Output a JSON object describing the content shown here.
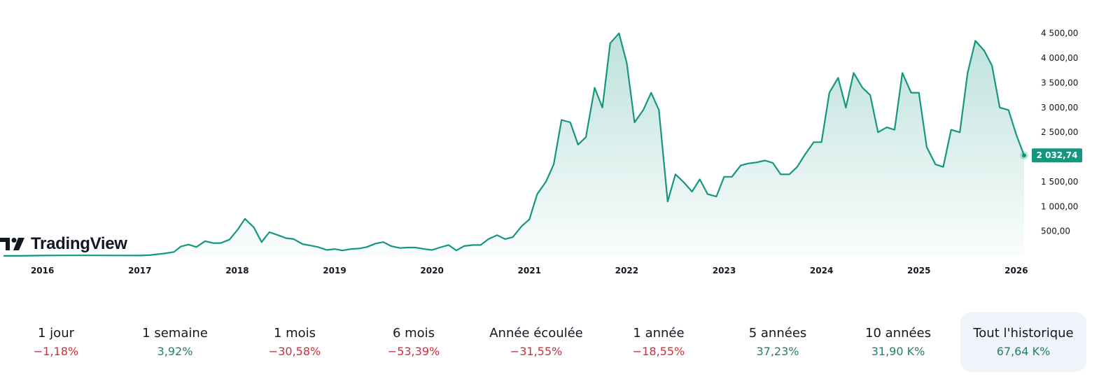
{
  "brand": {
    "name": "TradingView",
    "icon": "tradingview-logo-icon"
  },
  "colors": {
    "line": "#14967f",
    "negative": "#cc2f3c",
    "positive": "#22806d",
    "active_bg": "#f0f3fa"
  },
  "chart_data": {
    "type": "area",
    "x": [
      2015.6,
      2015.75,
      2016.0,
      2016.25,
      2016.5,
      2016.75,
      2017.0,
      2017.1,
      2017.25,
      2017.35,
      2017.42,
      2017.5,
      2017.58,
      2017.67,
      2017.75,
      2017.83,
      2017.92,
      2018.0,
      2018.08,
      2018.17,
      2018.25,
      2018.33,
      2018.42,
      2018.5,
      2018.58,
      2018.67,
      2018.75,
      2018.83,
      2018.92,
      2019.0,
      2019.08,
      2019.17,
      2019.25,
      2019.33,
      2019.42,
      2019.5,
      2019.58,
      2019.67,
      2019.75,
      2019.83,
      2019.92,
      2020.0,
      2020.08,
      2020.17,
      2020.25,
      2020.33,
      2020.42,
      2020.5,
      2020.58,
      2020.67,
      2020.75,
      2020.83,
      2020.92,
      2021.0,
      2021.08,
      2021.17,
      2021.25,
      2021.33,
      2021.42,
      2021.5,
      2021.58,
      2021.67,
      2021.75,
      2021.83,
      2021.92,
      2022.0,
      2022.08,
      2022.17,
      2022.25,
      2022.33,
      2022.42,
      2022.5,
      2022.58,
      2022.67,
      2022.75,
      2022.83,
      2022.92,
      2023.0,
      2023.08,
      2023.17,
      2023.25,
      2023.33,
      2023.42,
      2023.5,
      2023.58,
      2023.67,
      2023.75,
      2023.83,
      2023.92,
      2024.0,
      2024.08,
      2024.17,
      2024.25,
      2024.33,
      2024.42,
      2024.5,
      2024.58,
      2024.67,
      2024.75,
      2024.83,
      2024.92,
      2025.0,
      2025.08,
      2025.17,
      2025.25,
      2025.33,
      2025.42,
      2025.5,
      2025.58,
      2025.67,
      2025.75,
      2025.83,
      2025.92,
      2026.0,
      2026.08
    ],
    "series": [
      {
        "values": [
          1,
          2,
          8,
          12,
          12,
          10,
          8,
          15,
          50,
          80,
          190,
          230,
          180,
          300,
          260,
          260,
          330,
          520,
          750,
          580,
          280,
          480,
          420,
          360,
          340,
          240,
          210,
          180,
          120,
          140,
          110,
          140,
          150,
          180,
          250,
          280,
          200,
          160,
          170,
          170,
          140,
          120,
          170,
          220,
          110,
          200,
          220,
          220,
          340,
          420,
          340,
          380,
          600,
          740,
          1250,
          1500,
          1850,
          2750,
          2700,
          2250,
          2400,
          3400,
          3000,
          4300,
          4500,
          3900,
          2700,
          2950,
          3300,
          2950,
          1100,
          1650,
          1500,
          1300,
          1550,
          1250,
          1200,
          1600,
          1600,
          1830,
          1870,
          1890,
          1930,
          1880,
          1650,
          1650,
          1800,
          2050,
          2300,
          2300,
          3300,
          3600,
          3000,
          3700,
          3400,
          3250,
          2500,
          2600,
          2550,
          3700,
          3300,
          3300,
          2200,
          1850,
          1800,
          2550,
          2500,
          3700,
          4350,
          4150,
          3850,
          3000,
          2950,
          2450,
          2032.74
        ]
      }
    ],
    "ylim": [
      0,
      4750
    ],
    "xlim": [
      2015.6,
      2026.08
    ],
    "yticks": [
      500,
      1000,
      1500,
      2000,
      2500,
      3000,
      3500,
      4000,
      4500
    ],
    "ytick_labels": [
      "500,00",
      "1 000,00",
      "1 500,00",
      "2 000,00",
      "2 500,00",
      "3 000,00",
      "3 500,00",
      "4 000,00",
      "4 500,00"
    ],
    "xticks": [
      2016,
      2017,
      2018,
      2019,
      2020,
      2021,
      2022,
      2023,
      2024,
      2025,
      2026
    ],
    "xtick_labels": [
      "2016",
      "2017",
      "2018",
      "2019",
      "2020",
      "2021",
      "2022",
      "2023",
      "2024",
      "2025",
      "2026"
    ],
    "last_value": 2032.74,
    "last_value_label": "2 032,74",
    "grid": false
  },
  "periods": [
    {
      "label": "1 jour",
      "value": "−1,18%",
      "trend": "neg"
    },
    {
      "label": "1 semaine",
      "value": "3,92%",
      "trend": "pos"
    },
    {
      "label": "1 mois",
      "value": "−30,58%",
      "trend": "neg"
    },
    {
      "label": "6 mois",
      "value": "−53,39%",
      "trend": "neg"
    },
    {
      "label": "Année écoulée",
      "value": "−31,55%",
      "trend": "neg"
    },
    {
      "label": "1 année",
      "value": "−18,55%",
      "trend": "neg"
    },
    {
      "label": "5 années",
      "value": "37,23%",
      "trend": "pos"
    },
    {
      "label": "10 années",
      "value": "31,90 K%",
      "trend": "pos"
    },
    {
      "label": "Tout l'historique",
      "value": "67,64 K%",
      "trend": "pos",
      "active": true
    }
  ]
}
